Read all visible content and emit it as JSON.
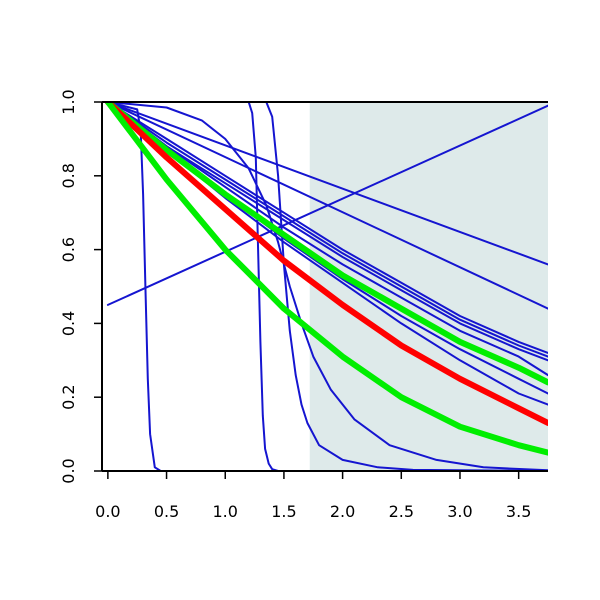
{
  "chart_data": {
    "type": "line",
    "title": "",
    "xlabel": "",
    "ylabel": "",
    "xlim": [
      -0.05,
      3.75
    ],
    "ylim": [
      0,
      1
    ],
    "x_ticks": [
      "0.0",
      "0.5",
      "1.0",
      "1.5",
      "2.0",
      "2.5",
      "3.0",
      "3.5"
    ],
    "y_ticks": [
      "0.0",
      "0.2",
      "0.4",
      "0.6",
      "0.8",
      "1.0"
    ],
    "shaded_region": {
      "x_from": 1.72,
      "x_to": 3.75,
      "color": "#deeaea"
    },
    "colors": {
      "blue": "#1515d0",
      "red": "#ff0000",
      "green": "#00ee00"
    },
    "series": [
      {
        "color": "blue",
        "width": 2,
        "x": [
          0,
          0.25,
          0.28,
          0.3,
          0.32,
          0.34,
          0.36,
          0.4,
          0.45,
          0.5,
          3.75
        ],
        "y": [
          1,
          0.98,
          0.92,
          0.75,
          0.5,
          0.25,
          0.1,
          0.01,
          0,
          0,
          0
        ]
      },
      {
        "color": "blue",
        "width": 2,
        "x": [
          0,
          1.2,
          1.23,
          1.26,
          1.28,
          1.3,
          1.32,
          1.34,
          1.37,
          1.4,
          1.45,
          3.75
        ],
        "y": [
          1,
          1,
          0.97,
          0.85,
          0.6,
          0.35,
          0.15,
          0.06,
          0.02,
          0.005,
          0,
          0
        ]
      },
      {
        "color": "blue",
        "width": 2,
        "x": [
          0,
          1.35,
          1.4,
          1.45,
          1.5,
          1.55,
          1.6,
          1.65,
          1.7,
          1.8,
          2.0,
          2.3,
          2.6,
          3.75
        ],
        "y": [
          1,
          1,
          0.96,
          0.8,
          0.56,
          0.38,
          0.26,
          0.18,
          0.13,
          0.07,
          0.03,
          0.01,
          0.003,
          0
        ]
      },
      {
        "color": "blue",
        "width": 2,
        "x": [
          0,
          0.5,
          0.8,
          1.0,
          1.2,
          1.35,
          1.45,
          1.55,
          1.65,
          1.75,
          1.9,
          2.1,
          2.4,
          2.8,
          3.2,
          3.75
        ],
        "y": [
          1,
          0.985,
          0.95,
          0.9,
          0.82,
          0.72,
          0.62,
          0.5,
          0.4,
          0.31,
          0.22,
          0.14,
          0.07,
          0.03,
          0.01,
          0.002
        ]
      },
      {
        "color": "blue",
        "width": 2,
        "x": [
          0,
          3.75
        ],
        "y": [
          0.45,
          0.99
        ]
      },
      {
        "color": "blue",
        "width": 2,
        "x": [
          0,
          3.75
        ],
        "y": [
          1,
          0.56
        ]
      },
      {
        "color": "blue",
        "width": 2,
        "x": [
          0,
          3.75
        ],
        "y": [
          1,
          0.44
        ]
      },
      {
        "color": "blue",
        "width": 2,
        "x": [
          0,
          0.5,
          1,
          1.5,
          2,
          2.5,
          3,
          3.5,
          3.75
        ],
        "y": [
          1,
          0.9,
          0.8,
          0.7,
          0.6,
          0.51,
          0.42,
          0.35,
          0.32
        ]
      },
      {
        "color": "blue",
        "width": 2,
        "x": [
          0,
          0.5,
          1,
          1.5,
          2,
          2.5,
          3,
          3.5,
          3.75
        ],
        "y": [
          1,
          0.89,
          0.79,
          0.69,
          0.59,
          0.5,
          0.41,
          0.34,
          0.31
        ]
      },
      {
        "color": "blue",
        "width": 2,
        "x": [
          0,
          0.5,
          1,
          1.5,
          2,
          2.5,
          3,
          3.5,
          3.75
        ],
        "y": [
          1,
          0.88,
          0.78,
          0.68,
          0.58,
          0.49,
          0.4,
          0.33,
          0.3
        ]
      },
      {
        "color": "blue",
        "width": 2,
        "x": [
          0,
          0.5,
          1,
          1.5,
          2,
          2.5,
          3,
          3.5,
          3.75
        ],
        "y": [
          1,
          0.88,
          0.77,
          0.66,
          0.56,
          0.47,
          0.38,
          0.31,
          0.26
        ]
      },
      {
        "color": "blue",
        "width": 2,
        "x": [
          0,
          0.5,
          1,
          1.5,
          2,
          2.5,
          3,
          3.5,
          3.75
        ],
        "y": [
          1,
          0.87,
          0.75,
          0.63,
          0.52,
          0.42,
          0.33,
          0.25,
          0.21
        ]
      },
      {
        "color": "blue",
        "width": 2,
        "x": [
          0,
          0.5,
          1,
          1.5,
          2,
          2.5,
          3,
          3.5,
          3.75
        ],
        "y": [
          1,
          0.87,
          0.74,
          0.62,
          0.51,
          0.4,
          0.3,
          0.21,
          0.18
        ]
      },
      {
        "color": "green",
        "width": 6,
        "x": [
          0,
          0.5,
          1,
          1.5,
          2,
          2.5,
          3,
          3.5,
          3.75
        ],
        "y": [
          1,
          0.87,
          0.75,
          0.64,
          0.53,
          0.44,
          0.35,
          0.28,
          0.24
        ]
      },
      {
        "color": "red",
        "width": 6,
        "x": [
          0,
          0.5,
          1,
          1.5,
          2,
          2.5,
          3,
          3.5,
          3.75
        ],
        "y": [
          1,
          0.85,
          0.71,
          0.57,
          0.45,
          0.34,
          0.25,
          0.17,
          0.13
        ]
      },
      {
        "color": "green",
        "width": 6,
        "x": [
          0,
          0.5,
          1,
          1.5,
          2,
          2.5,
          3,
          3.5,
          3.75
        ],
        "y": [
          1,
          0.79,
          0.6,
          0.44,
          0.31,
          0.2,
          0.12,
          0.07,
          0.05
        ]
      }
    ]
  }
}
